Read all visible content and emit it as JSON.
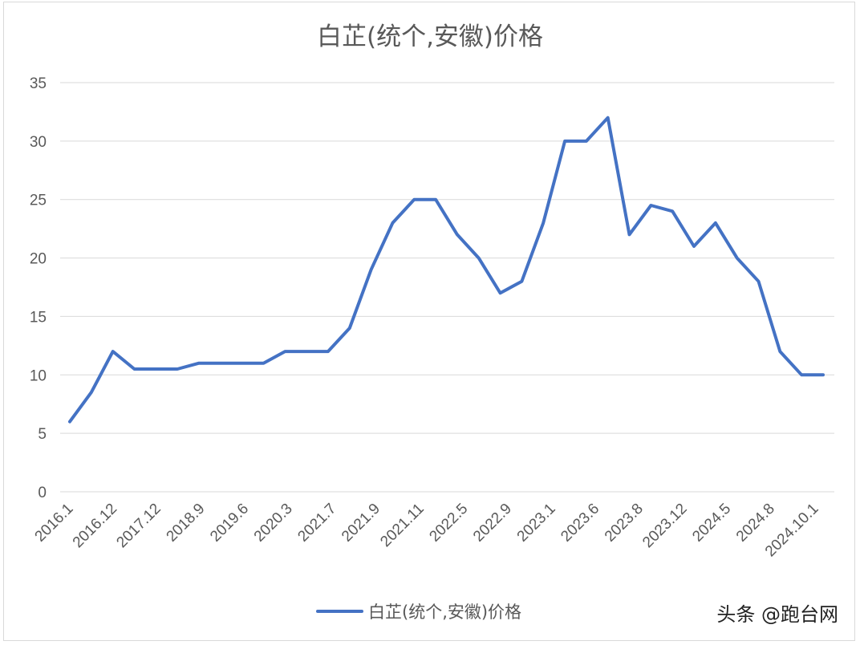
{
  "chart_data": {
    "type": "line",
    "title": "白芷(统个,安徽)价格",
    "xlabel": "",
    "ylabel": "",
    "ylim": [
      0,
      35
    ],
    "yticks": [
      0,
      5,
      10,
      15,
      20,
      25,
      30,
      35
    ],
    "grid": true,
    "legend": "bottom",
    "x_tick_labels": [
      "2016.1",
      "2016.12",
      "2017.12",
      "2018.9",
      "2019.6",
      "2020.3",
      "2021.7",
      "2021.9",
      "2021.11",
      "2022.5",
      "2022.9",
      "2023.1",
      "2023.6",
      "2023.8",
      "2023.12",
      "2024.5",
      "2024.8",
      "2024.10.1"
    ],
    "series": [
      {
        "name": "白芷(统个,安徽)价格",
        "color": "#4472c4",
        "values": [
          6,
          8.5,
          12,
          10.5,
          10.5,
          10.5,
          11,
          11,
          11,
          11,
          12,
          12,
          12,
          14,
          19,
          23,
          25,
          25,
          22,
          20,
          17,
          18,
          23,
          30,
          30,
          32,
          22,
          24.5,
          24,
          21,
          23,
          20,
          18,
          12,
          10,
          10
        ]
      }
    ]
  },
  "watermark": "头条 @跑台网"
}
